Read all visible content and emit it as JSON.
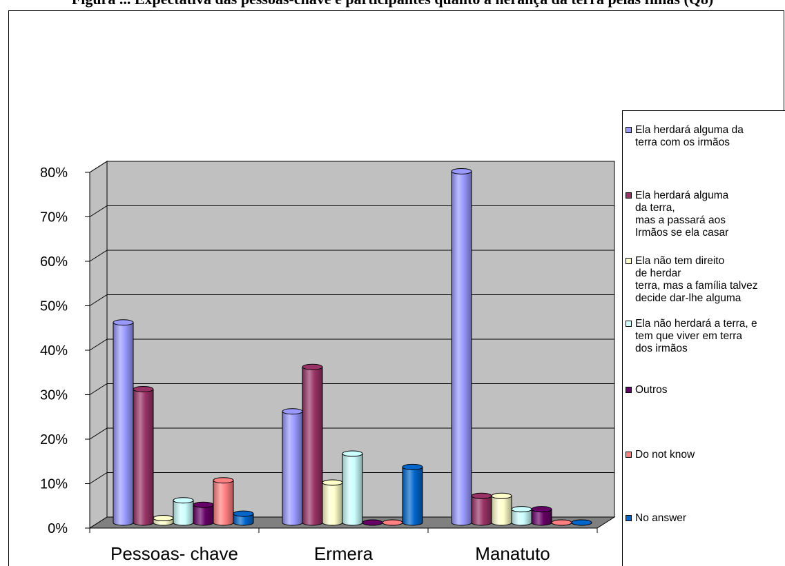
{
  "chart_data": {
    "type": "bar",
    "title": "Figura ... Expectativa das pessoas-chave e participantes quanto à herança da terra pelas filhas (Q8)",
    "categories": [
      "Pessoas- chave",
      "Ermera",
      "Manatuto"
    ],
    "y_ticks": [
      "0%",
      "10%",
      "20%",
      "30%",
      "40%",
      "50%",
      "60%",
      "70%",
      "80%"
    ],
    "ylim": [
      0,
      80
    ],
    "grid": true,
    "legend_position": "right",
    "series": [
      {
        "name": "Ela herdará alguma da\nterra com os irmãos",
        "color": "#9999ff",
        "values": [
          45,
          25,
          79
        ]
      },
      {
        "name": "Ela herdará alguma\n  da terra,\nmas a passará aos\nIrmãos se ela casar",
        "color": "#993366",
        "values": [
          30,
          35,
          6
        ]
      },
      {
        "name": "Ela não tem direito\nde herdar\nterra, mas a família talvez\ndecide dar-lhe alguma",
        "color": "#ffffcc",
        "values": [
          1,
          9,
          6
        ]
      },
      {
        "name": "Ela não herdará a terra, e\ntem que viver em terra\ndos irmãos",
        "color": "#ccffff",
        "values": [
          5,
          15.5,
          3
        ]
      },
      {
        "name": "Outros",
        "color": "#660066",
        "values": [
          4,
          0,
          3
        ]
      },
      {
        "name": "Do not know",
        "color": "#ff8080",
        "values": [
          9.5,
          0,
          0
        ]
      },
      {
        "name": "No answer",
        "color": "#0066cc",
        "values": [
          2,
          12.5,
          0
        ]
      }
    ]
  }
}
